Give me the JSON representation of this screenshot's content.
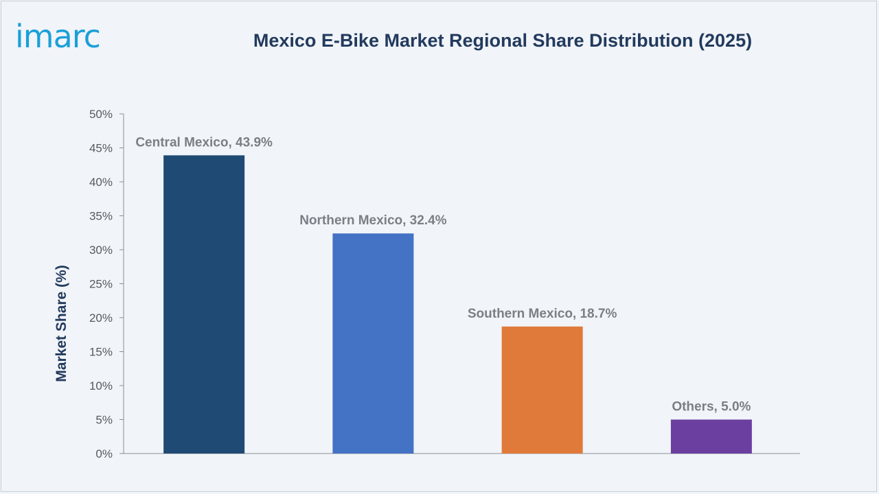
{
  "brand": {
    "logo_text": "imarc",
    "color": "#1a9fd9"
  },
  "chart_data": {
    "type": "bar",
    "title": "Mexico E-Bike Market Regional Share Distribution (2025)",
    "xlabel": "",
    "ylabel": "Market Share (%)",
    "ylim": [
      0,
      50
    ],
    "yticks": [
      0,
      5,
      10,
      15,
      20,
      25,
      30,
      35,
      40,
      45,
      50
    ],
    "ytick_labels": [
      "0%",
      "5%",
      "10%",
      "15%",
      "20%",
      "25%",
      "30%",
      "35%",
      "40%",
      "45%",
      "50%"
    ],
    "categories": [
      "Central Mexico",
      "Northern Mexico",
      "Southern Mexico",
      "Others"
    ],
    "values": [
      43.9,
      32.4,
      18.7,
      5.0
    ],
    "data_labels": [
      "Central Mexico, 43.9%",
      "Northern Mexico, 32.4%",
      "Southern Mexico, 18.7%",
      "Others, 5.0%"
    ],
    "colors": [
      "#1f4a73",
      "#4472c4",
      "#e07a3a",
      "#6b3fa0"
    ],
    "grid": false,
    "legend": "none"
  }
}
